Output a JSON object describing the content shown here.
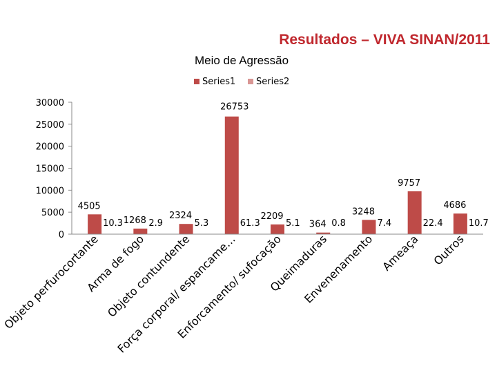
{
  "slide": {
    "title": "Resultados  – VIVA SINAN/2011"
  },
  "chart_data": {
    "type": "bar",
    "title": "Meio de Agressão",
    "xlabel": "",
    "ylabel": "",
    "ylim": [
      0,
      30000
    ],
    "yticks": [
      0,
      5000,
      10000,
      15000,
      20000,
      25000,
      30000
    ],
    "grid": false,
    "legend_position": "top",
    "categories": [
      "Objeto perfurocortante",
      "Arma de fogo",
      "Objeto contundente",
      "Força corporal/ espancame…",
      "Enforcamento/ sufocação",
      "Queimaduras",
      "Envenenamento",
      "Ameaça",
      "Outros"
    ],
    "series": [
      {
        "name": "Series1",
        "color": "#be4b48",
        "values": [
          4505,
          1268,
          2324,
          26753,
          2209,
          364,
          3248,
          9757,
          4686
        ]
      },
      {
        "name": "Series2",
        "color": "#d99694",
        "values": [
          10.3,
          2.9,
          5.3,
          61.3,
          5.1,
          0.8,
          7.4,
          22.4,
          10.7
        ]
      }
    ]
  }
}
